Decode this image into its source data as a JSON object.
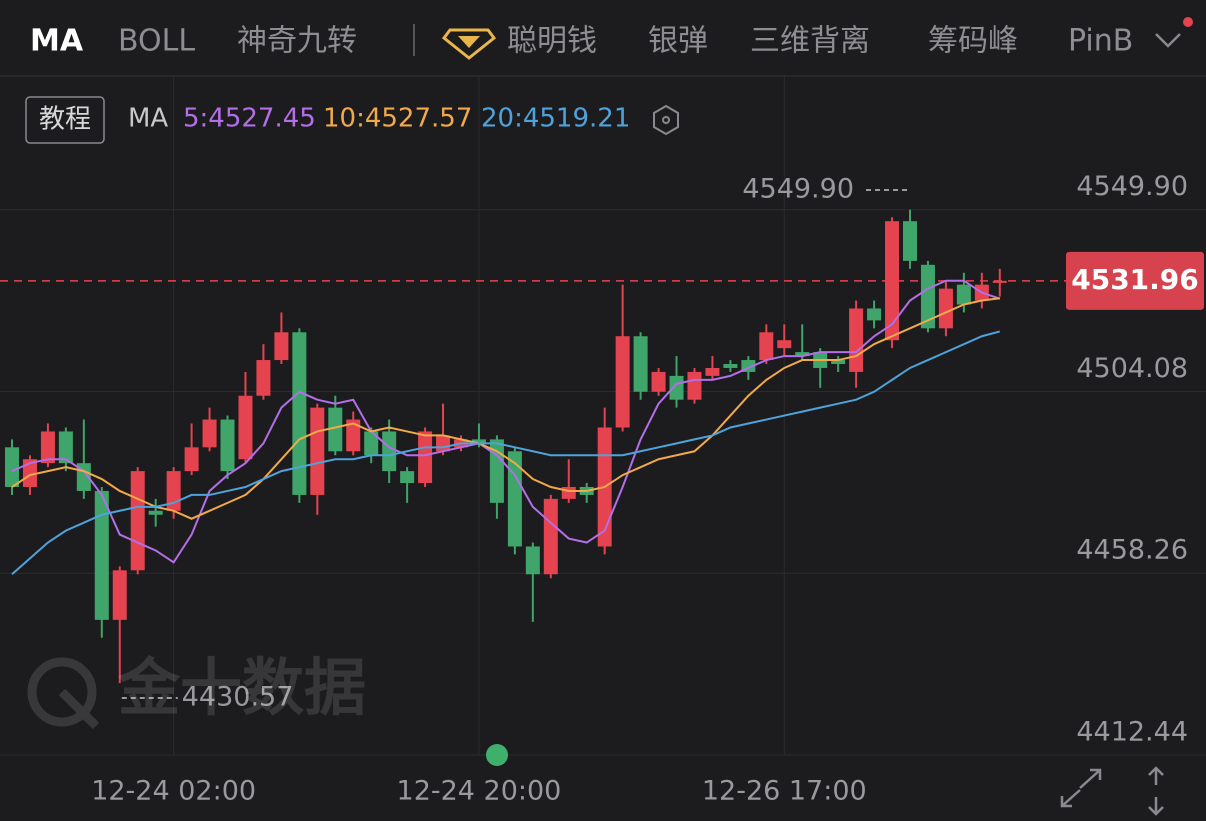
{
  "toolbar": {
    "tabs": [
      "MA",
      "BOLL",
      "神奇九转",
      "聪明钱",
      "银弹",
      "三维背离",
      "筹码峰",
      "PinB"
    ],
    "tutorial": "教程",
    "watermark": "金十数据"
  },
  "chart_data": {
    "type": "candlestick",
    "indicator": "MA",
    "categories": [
      null,
      null,
      null,
      null,
      null,
      null,
      null,
      null,
      null,
      "12-24 02:00",
      null,
      null,
      null,
      null,
      null,
      null,
      null,
      null,
      null,
      null,
      null,
      null,
      null,
      null,
      null,
      null,
      "12-24 20:00",
      null,
      null,
      null,
      null,
      null,
      null,
      null,
      null,
      null,
      null,
      null,
      null,
      null,
      null,
      null,
      null,
      "12-26 17:00",
      null,
      null,
      null,
      null,
      null,
      null,
      null,
      null,
      null,
      null,
      null,
      null
    ],
    "open": [
      4490,
      4480,
      4486,
      4494,
      4486,
      4479,
      4446.5,
      4459,
      4474,
      4474,
      4484,
      4490,
      4497,
      4487,
      4503,
      4512,
      4519,
      4478,
      4500,
      4489,
      4494,
      4494,
      4484,
      4481,
      4489,
      4490,
      4492,
      4492,
      4489,
      4465,
      4458,
      4477,
      4480,
      4465,
      4495,
      4518,
      4504,
      4508,
      4502,
      4508,
      4511,
      4512,
      4512,
      4515,
      4514,
      4514,
      4512,
      4509,
      4525,
      4517,
      4547,
      4536,
      4520,
      4531,
      4527,
      4531.5
    ],
    "high": [
      4492,
      4488,
      4496,
      4495,
      4497,
      4480,
      4460,
      4485,
      4477,
      4485,
      4496,
      4500,
      4498,
      4509,
      4516,
      4524,
      4520,
      4501,
      4503,
      4499,
      4495,
      4497,
      4485,
      4495,
      4501,
      4493,
      4496,
      4493,
      4490,
      4466,
      4478,
      4487,
      4481,
      4500,
      4531,
      4519,
      4510,
      4513,
      4510,
      4513,
      4512,
      4513,
      4521,
      4521,
      4521,
      4515,
      4513,
      4527,
      4527,
      4548,
      4549.9,
      4537,
      4532,
      4534,
      4534,
      4535
    ],
    "low": [
      4478,
      4478,
      4485,
      4484,
      4477,
      4442,
      4430.57,
      4458,
      4470,
      4472,
      4483,
      4489,
      4482,
      4486,
      4502,
      4511,
      4476,
      4473,
      4488,
      4488,
      4486,
      4481,
      4476,
      4480,
      4488,
      4489,
      4490,
      4472,
      4463,
      4446,
      4457,
      4476,
      4476,
      4463,
      4494,
      4502,
      4503,
      4500,
      4501,
      4507,
      4509,
      4507,
      4511,
      4513,
      4512,
      4505,
      4509,
      4505,
      4520,
      4515,
      4535,
      4519,
      4518,
      4524,
      4525,
      4528
    ],
    "close": [
      4480,
      4487,
      4494,
      4486,
      4479,
      4446.5,
      4459,
      4484,
      4473,
      4484,
      4490,
      4497,
      4484,
      4503,
      4512,
      4519,
      4478,
      4500,
      4489,
      4497,
      4488,
      4484,
      4481,
      4494,
      4493,
      4492,
      4491,
      4476,
      4465,
      4458,
      4477,
      4480,
      4478,
      4495,
      4518,
      4504,
      4509,
      4502,
      4509,
      4510,
      4510,
      4509,
      4519,
      4517,
      4513,
      4510,
      4511,
      4525,
      4522,
      4547,
      4537,
      4520,
      4530,
      4526,
      4531,
      4531.96
    ],
    "up_color": "#e5434f",
    "down_color": "#3fa56a",
    "series": [
      {
        "name": "5:4527.45",
        "color": "#b36ee8",
        "values": [
          4484,
          4486,
          4487,
          4487,
          4484,
          4478,
          4468,
          4466,
          4464,
          4461,
          4468,
          4479,
          4483,
          4486,
          4491,
          4500,
          4504,
          4502,
          4501,
          4502,
          4494,
          4490,
          4488,
          4488,
          4489,
          4490,
          4491,
          4488,
          4483,
          4475,
          4471,
          4467,
          4466,
          4469,
          4480,
          4492,
          4501,
          4506,
          4507,
          4507,
          4508,
          4510,
          4512,
          4513,
          4513,
          4514,
          4514,
          4514,
          4518,
          4521,
          4527,
          4530,
          4532,
          4532,
          4529,
          4527.45
        ]
      },
      {
        "name": "10:4527.57",
        "color": "#f2a94a",
        "values": [
          4480,
          4483,
          4484,
          4485,
          4484,
          4482,
          4479,
          4477,
          4475,
          4474,
          4472,
          4474,
          4476,
          4478,
          4482,
          4487,
          4492,
          4494,
          4495,
          4496,
          4494,
          4495,
          4494,
          4493,
          4493,
          4492,
          4491,
          4489,
          4486,
          4482,
          4480,
          4479,
          4479,
          4480,
          4483,
          4485,
          4487,
          4488,
          4489,
          4493,
          4498,
          4503,
          4507,
          4510,
          4512,
          4512,
          4512,
          4513,
          4516,
          4518,
          4520,
          4522,
          4524,
          4526,
          4527,
          4527.57
        ]
      },
      {
        "name": "20:4519.21",
        "color": "#4fa3dc",
        "values": [
          4458,
          4462,
          4466,
          4469,
          4471,
          4473,
          4474,
          4475,
          4475,
          4476,
          4478,
          4478,
          4479,
          4480,
          4482,
          4484,
          4485,
          4486,
          4487,
          4487,
          4488,
          4488,
          4489,
          4490,
          4490,
          4491,
          4491,
          4491,
          4490,
          4489,
          4488,
          4488,
          4488,
          4488,
          4488,
          4489,
          4490,
          4491,
          4492,
          4493,
          4495,
          4496,
          4497,
          4498,
          4499,
          4500,
          4501,
          4502,
          4504,
          4507,
          4510,
          4512,
          4514,
          4516,
          4518,
          4519.21
        ]
      }
    ],
    "ylim": [
      4412.44,
      4583.6
    ],
    "yticks": [
      {
        "value": 4549.9,
        "label": "4549.90"
      },
      4504.08,
      4458.26,
      4412.44
    ],
    "grid": true,
    "current_price": 4531.96,
    "high_marker": {
      "value": 4549.9,
      "label": "4549.90"
    },
    "low_marker": 4430.57
  }
}
